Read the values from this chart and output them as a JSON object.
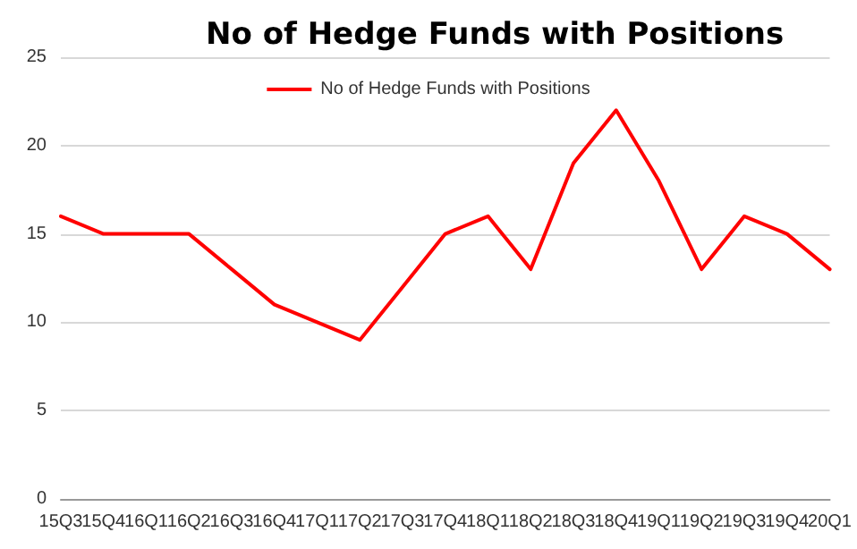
{
  "chart_data": {
    "type": "line",
    "title": "No of Hedge Funds with Positions",
    "categories": [
      "15Q3",
      "15Q4",
      "16Q1",
      "16Q2",
      "16Q3",
      "16Q4",
      "17Q1",
      "17Q2",
      "17Q3",
      "17Q4",
      "18Q1",
      "18Q2",
      "18Q3",
      "18Q4",
      "19Q1",
      "19Q2",
      "19Q3",
      "19Q4",
      "20Q1"
    ],
    "series": [
      {
        "name": "No of Hedge Funds with Positions",
        "color": "#ff0000",
        "values": [
          16,
          15,
          15,
          15,
          13,
          11,
          10,
          9,
          12,
          15,
          16,
          13,
          19,
          22,
          18,
          13,
          16,
          15,
          13
        ]
      }
    ],
    "ylim": [
      0,
      25
    ],
    "yticks": [
      0,
      5,
      10,
      15,
      20,
      25
    ],
    "grid": "y",
    "legend": "top",
    "marker": "none",
    "line_style": "solid"
  }
}
